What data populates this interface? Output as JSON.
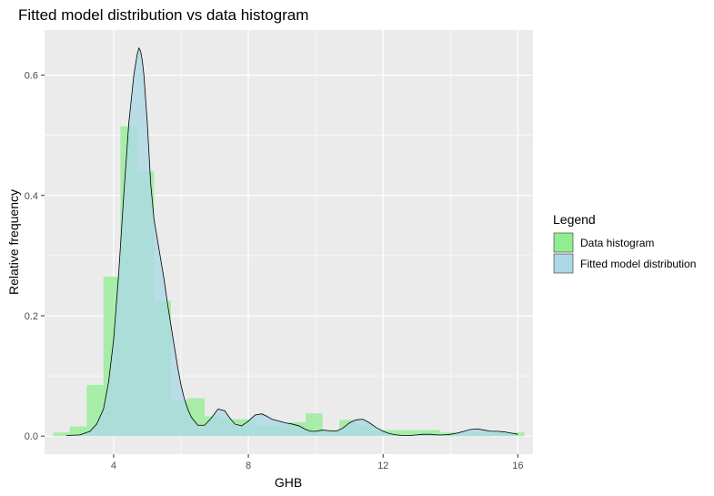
{
  "chart_data": {
    "type": "histogram_with_density",
    "title": "Fitted model distribution vs data histogram",
    "xlabel": "GHB",
    "ylabel": "Relative frequency",
    "xlim": [
      1.95,
      16.45
    ],
    "ylim": [
      -0.03,
      0.675
    ],
    "x_ticks": [
      {
        "value": 4,
        "label": "4"
      },
      {
        "value": 8,
        "label": "8"
      },
      {
        "value": 12,
        "label": "12"
      },
      {
        "value": 16,
        "label": "16"
      }
    ],
    "y_ticks": [
      {
        "value": 0.0,
        "label": "0.0"
      },
      {
        "value": 0.2,
        "label": "0.2"
      },
      {
        "value": 0.4,
        "label": "0.4"
      },
      {
        "value": 0.6,
        "label": "0.6"
      }
    ],
    "grid": true,
    "legend": {
      "title": "Legend",
      "position": "right",
      "entries": [
        {
          "label": "Data histogram",
          "color": "#90ee90"
        },
        {
          "label": "Fitted model distribution",
          "color": "#add8e6"
        }
      ]
    },
    "histogram": {
      "name": "Data histogram",
      "color": "#90ee90",
      "opacity": 0.75,
      "bin_edges": [
        2.2,
        2.7,
        3.2,
        3.7,
        4.2,
        4.7,
        5.2,
        5.7,
        6.2,
        6.7,
        7.2,
        7.7,
        8.2,
        8.7,
        9.2,
        9.7,
        10.2,
        10.7,
        11.2,
        11.7,
        12.2,
        12.7,
        13.2,
        13.7,
        14.2,
        14.7,
        15.2,
        15.7,
        16.2
      ],
      "values": [
        0.006,
        0.016,
        0.085,
        0.265,
        0.515,
        0.44,
        0.225,
        0.06,
        0.063,
        0.033,
        0.028,
        0.028,
        0.018,
        0.018,
        0.023,
        0.038,
        0.01,
        0.027,
        0.018,
        0.01,
        0.01,
        0.01,
        0.01,
        0.006,
        0.006,
        0.006,
        0.006,
        0.006
      ]
    },
    "density": {
      "name": "Fitted model distribution",
      "color": "#add8e6",
      "opacity": 0.8,
      "x": [
        2.6,
        3.0,
        3.3,
        3.5,
        3.7,
        3.85,
        4.0,
        4.15,
        4.3,
        4.45,
        4.6,
        4.7,
        4.75,
        4.8,
        4.85,
        4.9,
        5.0,
        5.1,
        5.2,
        5.35,
        5.5,
        5.6,
        5.7,
        5.8,
        5.9,
        6.0,
        6.1,
        6.2,
        6.3,
        6.5,
        6.7,
        6.9,
        7.1,
        7.3,
        7.45,
        7.6,
        7.8,
        8.0,
        8.2,
        8.4,
        8.55,
        8.7,
        8.9,
        9.1,
        9.3,
        9.5,
        9.7,
        9.85,
        10.0,
        10.2,
        10.4,
        10.6,
        10.8,
        11.0,
        11.2,
        11.4,
        11.6,
        11.8,
        12.0,
        12.2,
        12.4,
        12.6,
        12.8,
        13.0,
        13.2,
        13.4,
        13.6,
        13.8,
        14.0,
        14.2,
        14.4,
        14.6,
        14.8,
        15.0,
        15.2,
        15.4,
        15.6,
        15.8,
        16.0
      ],
      "y": [
        0.001,
        0.002,
        0.008,
        0.02,
        0.045,
        0.09,
        0.16,
        0.27,
        0.4,
        0.52,
        0.6,
        0.635,
        0.645,
        0.64,
        0.625,
        0.6,
        0.52,
        0.42,
        0.36,
        0.31,
        0.26,
        0.22,
        0.185,
        0.15,
        0.115,
        0.085,
        0.062,
        0.045,
        0.032,
        0.018,
        0.018,
        0.03,
        0.045,
        0.042,
        0.03,
        0.02,
        0.017,
        0.025,
        0.035,
        0.037,
        0.033,
        0.028,
        0.025,
        0.022,
        0.02,
        0.017,
        0.011,
        0.008,
        0.008,
        0.01,
        0.009,
        0.008,
        0.013,
        0.022,
        0.027,
        0.028,
        0.022,
        0.014,
        0.008,
        0.004,
        0.002,
        0.001,
        0.001,
        0.002,
        0.003,
        0.003,
        0.002,
        0.002,
        0.003,
        0.005,
        0.008,
        0.011,
        0.012,
        0.01,
        0.008,
        0.008,
        0.007,
        0.005,
        0.003
      ]
    }
  }
}
